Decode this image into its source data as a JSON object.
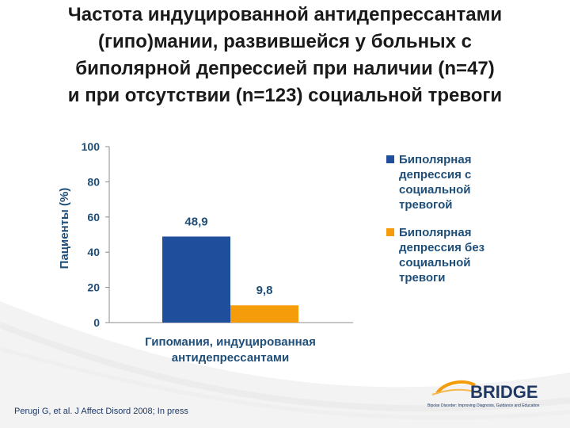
{
  "title_lines": [
    "Частота индуцированной антидепрессантами",
    "(гипо)мании, развившейся у больных с",
    "биполярной депрессией при наличии (n=47)",
    "и при отсутствии (n=123) социальной тревоги"
  ],
  "chart_data": {
    "type": "bar",
    "categories": [
      "Гипомания, индуцированная антидепрессантами"
    ],
    "category_label_lines": [
      "Гипомания, индуцированная",
      "антидепрессантами"
    ],
    "series": [
      {
        "name": "Биполярная депрессия с социальной тревогой",
        "values": [
          48.9
        ],
        "value_label": "48,9",
        "color": "#1f4e9c"
      },
      {
        "name": "Биполярная депрессия без социальной тревоги",
        "values": [
          9.8
        ],
        "value_label": "9,8",
        "color": "#f59c0a"
      }
    ],
    "ylabel": "Пациенты (%)",
    "ylim": [
      0,
      100
    ],
    "yticks": [
      0,
      20,
      40,
      60,
      80,
      100
    ],
    "grid": false,
    "legend_position": "right"
  },
  "legend": [
    {
      "label": "Биполярная\nдепрессия с\nсоциальной\nтревогой",
      "color": "#1f4e9c"
    },
    {
      "label": "Биполярная\nдепрессия без\nсоциальной\nтревоги",
      "color": "#f59c0a"
    }
  ],
  "footer": {
    "citation": "Perugi G, et al. J Affect Disord 2008; In press"
  },
  "logo": {
    "text": "BRIDGE",
    "tagline": "Bipolar Disorder: Improving Diagnosis, Guidance and Education"
  },
  "colors": {
    "axis_text": "#1f4e79",
    "accent_blue": "#1f4e9c",
    "accent_orange": "#f59c0a"
  }
}
